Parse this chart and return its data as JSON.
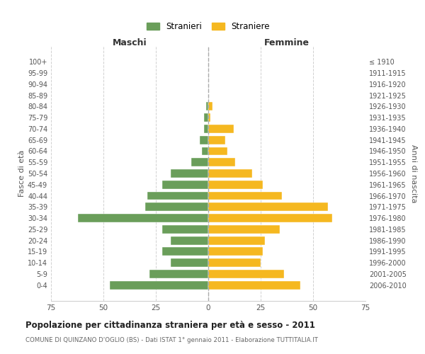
{
  "age_groups": [
    "0-4",
    "5-9",
    "10-14",
    "15-19",
    "20-24",
    "25-29",
    "30-34",
    "35-39",
    "40-44",
    "45-49",
    "50-54",
    "55-59",
    "60-64",
    "65-69",
    "70-74",
    "75-79",
    "80-84",
    "85-89",
    "90-94",
    "95-99",
    "100+"
  ],
  "birth_years": [
    "2006-2010",
    "2001-2005",
    "1996-2000",
    "1991-1995",
    "1986-1990",
    "1981-1985",
    "1976-1980",
    "1971-1975",
    "1966-1970",
    "1961-1965",
    "1956-1960",
    "1951-1955",
    "1946-1950",
    "1941-1945",
    "1936-1940",
    "1931-1935",
    "1926-1930",
    "1921-1925",
    "1916-1920",
    "1911-1915",
    "≤ 1910"
  ],
  "maschi": [
    47,
    28,
    18,
    22,
    18,
    22,
    62,
    30,
    29,
    22,
    18,
    8,
    3,
    4,
    2,
    2,
    1,
    0,
    0,
    0,
    0
  ],
  "femmine": [
    44,
    36,
    25,
    26,
    27,
    34,
    59,
    57,
    35,
    26,
    21,
    13,
    9,
    8,
    12,
    1,
    2,
    0,
    0,
    0,
    0
  ],
  "color_maschi": "#6a9e5a",
  "color_femmine": "#f5b820",
  "grid_color": "#cccccc",
  "dashed_line_color": "#aaaaaa",
  "title": "Popolazione per cittadinanza straniera per età e sesso - 2011",
  "subtitle": "COMUNE DI QUINZANO D'OGLIO (BS) - Dati ISTAT 1° gennaio 2011 - Elaborazione TUTTITALIA.IT",
  "header_left": "Maschi",
  "header_right": "Femmine",
  "ylabel_left": "Fasce di età",
  "ylabel_right": "Anni di nascita",
  "legend_maschi": "Stranieri",
  "legend_femmine": "Straniere",
  "xlim": 75
}
